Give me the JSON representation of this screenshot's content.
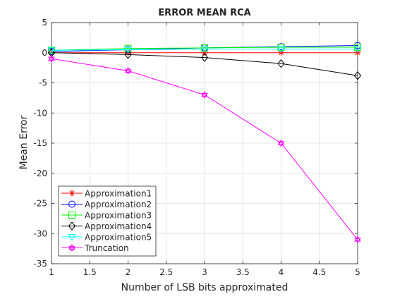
{
  "chart_data": {
    "type": "line",
    "title": "ERROR MEAN RCA",
    "xlabel": "Number of LSB bits approximated",
    "ylabel": "Mean Error",
    "xlim": [
      1,
      5
    ],
    "ylim": [
      -35,
      5
    ],
    "xticks": [
      "1",
      "1.5",
      "2",
      "2.5",
      "3",
      "3.5",
      "4",
      "4.5",
      "5"
    ],
    "yticks": [
      "5",
      "0",
      "-5",
      "-10",
      "-15",
      "-20",
      "-25",
      "-30",
      "-35"
    ],
    "grid": true,
    "legend_position": "bottom-left",
    "x": [
      1,
      2,
      3,
      4,
      5
    ],
    "series": [
      {
        "name": "Approximation1",
        "values": [
          0,
          0,
          0,
          0,
          0
        ],
        "color": "#ff0000",
        "marker": "asterisk"
      },
      {
        "name": "Approximation2",
        "values": [
          0.2,
          0.5,
          0.8,
          1.0,
          1.2
        ],
        "color": "#0000ff",
        "marker": "circle"
      },
      {
        "name": "Approximation3",
        "values": [
          0.4,
          0.7,
          0.8,
          0.9,
          0.9
        ],
        "color": "#00ff00",
        "marker": "square"
      },
      {
        "name": "Approximation4",
        "values": [
          0,
          -0.3,
          -0.8,
          -1.8,
          -3.8
        ],
        "color": "#000000",
        "marker": "diamond"
      },
      {
        "name": "Approximation5",
        "values": [
          0.4,
          0.5,
          0.6,
          0.6,
          0.6
        ],
        "color": "#00ffff",
        "marker": "triangle-down"
      },
      {
        "name": "Truncation",
        "values": [
          -1,
          -3,
          -7,
          -15,
          -31
        ],
        "color": "#ff00ff",
        "marker": "hexagram"
      }
    ]
  }
}
